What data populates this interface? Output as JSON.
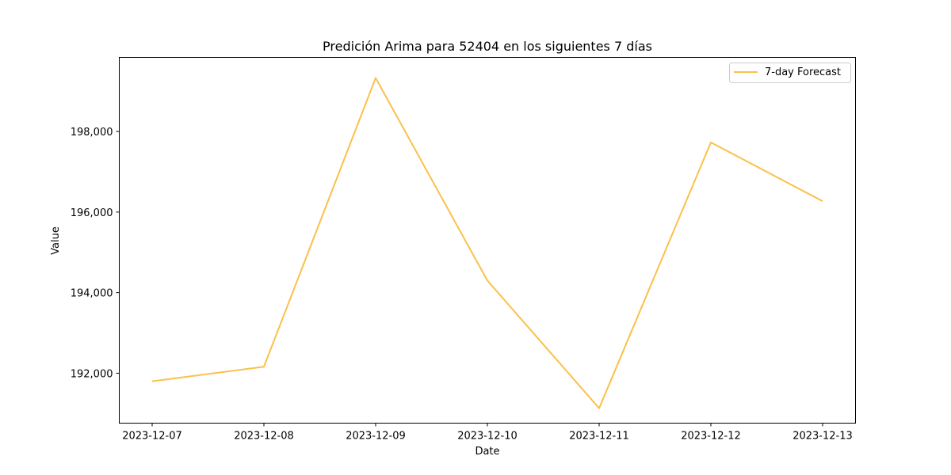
{
  "chart_data": {
    "type": "line",
    "title": "Predición Arima para 52404 en los siguientes 7 días",
    "xlabel": "Date",
    "ylabel": "Value",
    "x": [
      "2023-12-07",
      "2023-12-08",
      "2023-12-09",
      "2023-12-10",
      "2023-12-11",
      "2023-12-12",
      "2023-12-13"
    ],
    "y_ticks": [
      192000,
      194000,
      196000,
      198000
    ],
    "y_tick_labels": [
      "192,000",
      "194,000",
      "196,000",
      "198,000"
    ],
    "ylim": [
      190760,
      199840
    ],
    "grid": false,
    "legend_position": "top-right",
    "series": [
      {
        "name": "7-day Forecast",
        "color": "#fbc04a",
        "values": [
          191800,
          192160,
          199330,
          194300,
          191130,
          197730,
          196270
        ]
      }
    ]
  }
}
